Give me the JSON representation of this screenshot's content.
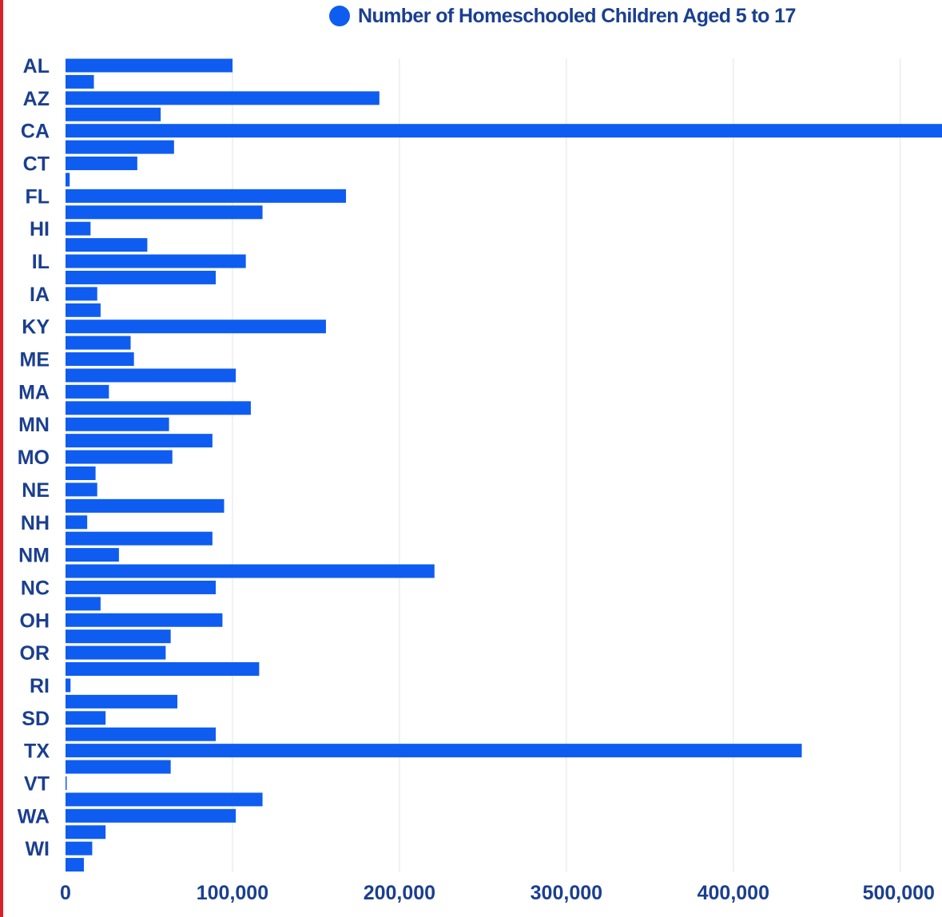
{
  "legend": {
    "label": "Number of Homeschooled Children Aged 5 to 17",
    "color": "#0f5cf0"
  },
  "chart_data": {
    "type": "bar",
    "orientation": "horizontal",
    "bar_color": "#0f5cf0",
    "xlim": [
      0,
      525000
    ],
    "xticks": [
      0,
      100000,
      200000,
      300000,
      400000,
      500000
    ],
    "xtick_labels": [
      "0",
      "100,000",
      "200,000",
      "300,000",
      "400,000",
      "500,000"
    ],
    "grid": "vertical",
    "legend_position": "top-center",
    "categories": [
      "AL",
      "",
      "AZ",
      "",
      "CA",
      "",
      "CT",
      "",
      "FL",
      "",
      "HI",
      "",
      "IL",
      "",
      "IA",
      "",
      "KY",
      "",
      "ME",
      "",
      "MA",
      "",
      "MN",
      "",
      "MO",
      "",
      "NE",
      "",
      "NH",
      "",
      "NM",
      "",
      "NC",
      "",
      "OH",
      "",
      "OR",
      "",
      "RI",
      "",
      "SD",
      "",
      "TX",
      "",
      "VT",
      "",
      "WA",
      "",
      "WI",
      ""
    ],
    "series": [
      {
        "name": "Number of Homeschooled Children Aged 5 to 17",
        "values": [
          100000,
          17000,
          188000,
          57000,
          525000,
          65000,
          43000,
          2500,
          168000,
          118000,
          15000,
          49000,
          108000,
          90000,
          19000,
          21000,
          156000,
          39000,
          41000,
          102000,
          26000,
          111000,
          62000,
          88000,
          64000,
          18000,
          19000,
          95000,
          13000,
          88000,
          32000,
          221000,
          90000,
          21000,
          94000,
          63000,
          60000,
          116000,
          3000,
          67000,
          24000,
          90000,
          441000,
          63000,
          500,
          118000,
          102000,
          24000,
          16000,
          11000
        ]
      }
    ]
  }
}
